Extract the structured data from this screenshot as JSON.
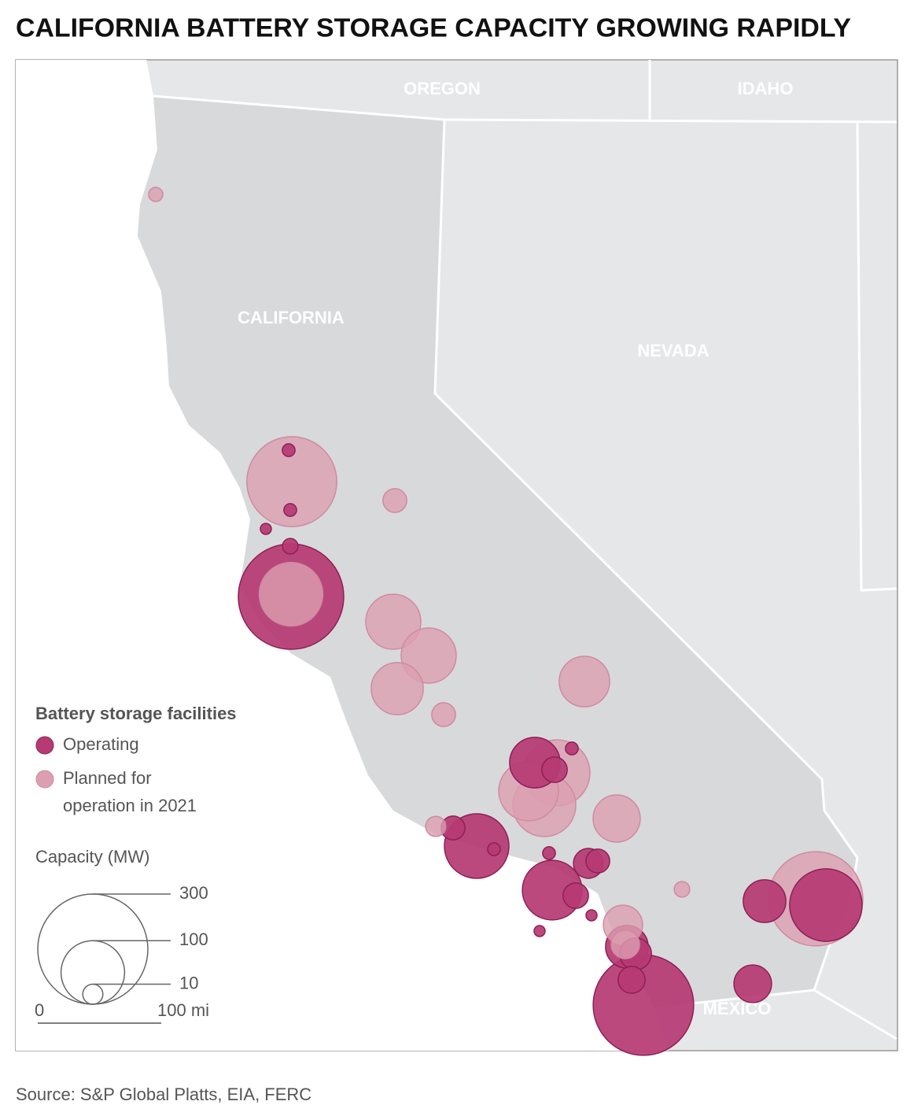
{
  "title": "CALIFORNIA BATTERY STORAGE CAPACITY GROWING RAPIDLY",
  "map": {
    "labels": [
      "OREGON",
      "IDAHO",
      "CALIFORNIA",
      "NEVADA",
      "MEXICO"
    ]
  },
  "legend": {
    "title": "Battery storage facilities",
    "items": [
      {
        "label": [
          "Operating"
        ],
        "color": "#b63a73"
      },
      {
        "label": [
          "Planned for",
          "operation in 2021"
        ],
        "color": "#dc9fb1"
      }
    ]
  },
  "size_legend": {
    "title": "Capacity (MW)",
    "values": [
      300,
      100,
      10
    ]
  },
  "scale_bar": {
    "labels": [
      "0",
      "100 mi"
    ]
  },
  "facilities": {
    "operating": [
      4,
      4,
      3,
      6,
      275,
      4,
      63,
      16,
      14,
      103,
      4,
      4,
      22,
      14,
      88,
      16,
      3,
      3,
      45,
      130,
      45,
      25,
      18,
      250,
      35
    ],
    "planned": [
      5,
      200,
      14,
      100,
      75,
      75,
      67,
      14,
      63,
      88,
      108,
      98,
      55,
      10,
      6,
      220,
      38,
      20
    ]
  },
  "source": "Source: S&P Global Platts, EIA, FERC"
}
